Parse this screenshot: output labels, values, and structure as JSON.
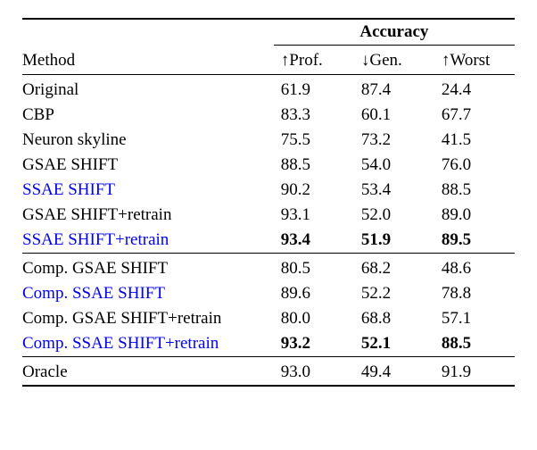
{
  "table": {
    "super_header": "Accuracy",
    "method_header": "Method",
    "columns": [
      {
        "arrow": "↑",
        "label": "Prof."
      },
      {
        "arrow": "↓",
        "label": "Gen."
      },
      {
        "arrow": "↑",
        "label": "Worst"
      }
    ],
    "sections": [
      {
        "rows": [
          {
            "method": "Original",
            "prof": "61.9",
            "gen": "87.4",
            "worst": "24.4",
            "blue": false,
            "bold": false
          },
          {
            "method": "CBP",
            "prof": "83.3",
            "gen": "60.1",
            "worst": "67.7",
            "blue": false,
            "bold": false
          },
          {
            "method": "Neuron skyline",
            "prof": "75.5",
            "gen": "73.2",
            "worst": "41.5",
            "blue": false,
            "bold": false
          },
          {
            "method": "GSAE SHIFT",
            "prof": "88.5",
            "gen": "54.0",
            "worst": "76.0",
            "blue": false,
            "bold": false
          },
          {
            "method": "SSAE SHIFT",
            "prof": "90.2",
            "gen": "53.4",
            "worst": "88.5",
            "blue": true,
            "bold": false
          },
          {
            "method": "GSAE SHIFT+retrain",
            "prof": "93.1",
            "gen": "52.0",
            "worst": "89.0",
            "blue": false,
            "bold": false
          },
          {
            "method": "SSAE SHIFT+retrain",
            "prof": "93.4",
            "gen": "51.9",
            "worst": "89.5",
            "blue": true,
            "bold": true
          }
        ]
      },
      {
        "rows": [
          {
            "method": "Comp. GSAE SHIFT",
            "prof": "80.5",
            "gen": "68.2",
            "worst": "48.6",
            "blue": false,
            "bold": false
          },
          {
            "method": "Comp. SSAE SHIFT",
            "prof": "89.6",
            "gen": "52.2",
            "worst": "78.8",
            "blue": true,
            "bold": false
          },
          {
            "method": "Comp. GSAE SHIFT+retrain",
            "prof": "80.0",
            "gen": "68.8",
            "worst": "57.1",
            "blue": false,
            "bold": false
          },
          {
            "method": "Comp. SSAE SHIFT+retrain",
            "prof": "93.2",
            "gen": "52.1",
            "worst": "88.5",
            "blue": true,
            "bold": true
          }
        ]
      },
      {
        "rows": [
          {
            "method": "Oracle",
            "prof": "93.0",
            "gen": "49.4",
            "worst": "91.9",
            "blue": false,
            "bold": false
          }
        ]
      }
    ]
  },
  "colors": {
    "text": "#000000",
    "link": "#0000ee",
    "background": "#ffffff",
    "border": "#000000"
  },
  "typography": {
    "font_family": "Times New Roman",
    "base_fontsize": 19
  }
}
